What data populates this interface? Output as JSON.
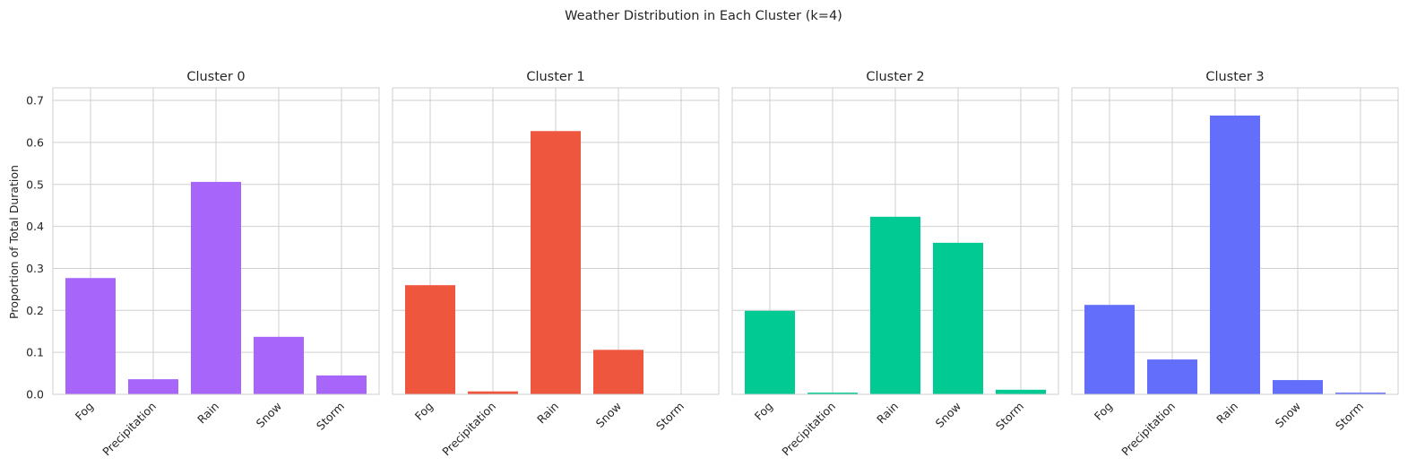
{
  "chart_data": {
    "type": "bar",
    "title": "Weather Distribution in Each Cluster (k=4)",
    "ylabel": "Proportion of Total Duration",
    "ylim": [
      0,
      0.73
    ],
    "yticks": [
      "0.0",
      "0.1",
      "0.2",
      "0.3",
      "0.4",
      "0.5",
      "0.6",
      "0.7"
    ],
    "ytick_values": [
      0,
      0.1,
      0.2,
      0.3,
      0.4,
      0.5,
      0.6,
      0.7
    ],
    "grid": true,
    "categories": [
      "Fog",
      "Precipitation",
      "Rain",
      "Snow",
      "Storm"
    ],
    "panels": [
      {
        "title": "Cluster 0",
        "color": "#a865f9",
        "values": [
          0.277,
          0.036,
          0.506,
          0.137,
          0.045
        ]
      },
      {
        "title": "Cluster 1",
        "color": "#ee573d",
        "values": [
          0.26,
          0.007,
          0.627,
          0.106,
          0.0
        ]
      },
      {
        "title": "Cluster 2",
        "color": "#02ca93",
        "values": [
          0.199,
          0.004,
          0.423,
          0.361,
          0.011
        ]
      },
      {
        "title": "Cluster 3",
        "color": "#636efa",
        "values": [
          0.213,
          0.083,
          0.664,
          0.034,
          0.004
        ]
      }
    ]
  }
}
